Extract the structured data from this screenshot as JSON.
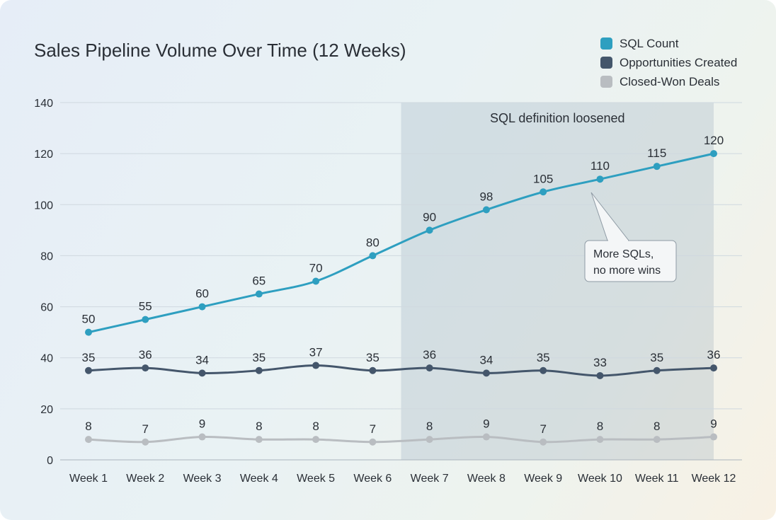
{
  "chart_data": {
    "type": "line",
    "title": "Sales Pipeline Volume Over Time (12 Weeks)",
    "categories": [
      "Week 1",
      "Week 2",
      "Week 3",
      "Week 4",
      "Week 5",
      "Week 6",
      "Week 7",
      "Week 8",
      "Week 9",
      "Week 10",
      "Week 11",
      "Week 12"
    ],
    "ylim": [
      0,
      140
    ],
    "yticks": [
      0,
      20,
      40,
      60,
      80,
      100,
      120,
      140
    ],
    "grid": true,
    "legend_position": "top-right",
    "series": [
      {
        "name": "SQL Count",
        "color": "#2e9fc0",
        "values": [
          50,
          55,
          60,
          65,
          70,
          80,
          90,
          98,
          105,
          110,
          115,
          120
        ]
      },
      {
        "name": "Opportunities Created",
        "color": "#44566b",
        "values": [
          35,
          36,
          34,
          35,
          37,
          35,
          36,
          34,
          35,
          33,
          35,
          36
        ]
      },
      {
        "name": "Closed-Won Deals",
        "color": "#b9bdc1",
        "values": [
          8,
          7,
          9,
          8,
          8,
          7,
          8,
          9,
          7,
          8,
          8,
          9
        ]
      }
    ],
    "shaded_region": {
      "from": "Week 7",
      "to": "Week 12",
      "label": "SQL definition loosened"
    },
    "annotation": {
      "text_line1": "More SQLs,",
      "text_line2": "no more wins",
      "points_to": "Week 10"
    }
  }
}
